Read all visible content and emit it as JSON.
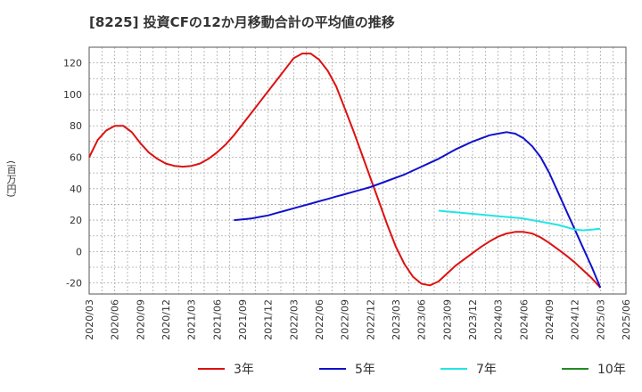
{
  "chart_data": {
    "type": "line",
    "title": "[8225]  投資CFの12か月移動合計の平均値の推移",
    "ylabel": "(百万円)",
    "xlabel": "",
    "ylim": [
      -27,
      130
    ],
    "yticks": [
      -20,
      0,
      20,
      40,
      60,
      80,
      100,
      120
    ],
    "x_ticks": [
      "2020/03",
      "2020/06",
      "2020/09",
      "2020/12",
      "2021/03",
      "2021/06",
      "2021/09",
      "2021/12",
      "2022/03",
      "2022/06",
      "2022/09",
      "2022/12",
      "2023/03",
      "2023/06",
      "2023/09",
      "2023/12",
      "2024/03",
      "2024/06",
      "2024/09",
      "2024/12",
      "2025/03",
      "2025/06"
    ],
    "grid": true,
    "legend_position": "bottom",
    "series": [
      {
        "name": "3年",
        "color": "#dd1111",
        "x": [
          "2020/03",
          "2020/04",
          "2020/05",
          "2020/06",
          "2020/07",
          "2020/08",
          "2020/09",
          "2020/10",
          "2020/11",
          "2020/12",
          "2021/01",
          "2021/02",
          "2021/03",
          "2021/04",
          "2021/05",
          "2021/06",
          "2021/07",
          "2021/08",
          "2021/09",
          "2021/10",
          "2021/11",
          "2021/12",
          "2022/01",
          "2022/02",
          "2022/03",
          "2022/04",
          "2022/05",
          "2022/06",
          "2022/07",
          "2022/08",
          "2022/09",
          "2022/10",
          "2022/11",
          "2022/12",
          "2023/01",
          "2023/02",
          "2023/03",
          "2023/04",
          "2023/05",
          "2023/06",
          "2023/07",
          "2023/08",
          "2023/09",
          "2023/10",
          "2023/11",
          "2023/12",
          "2024/01",
          "2024/02",
          "2024/03",
          "2024/04",
          "2024/05",
          "2024/06",
          "2024/07",
          "2024/08",
          "2024/09",
          "2024/10",
          "2024/11",
          "2024/12",
          "2025/01",
          "2025/02",
          "2025/03"
        ],
        "values": [
          60,
          71,
          77,
          80,
          80,
          76,
          69,
          63,
          59,
          56,
          54.5,
          54,
          54.5,
          56,
          59,
          63,
          68,
          74,
          81,
          88,
          95,
          102,
          109,
          116,
          123,
          126,
          126,
          122,
          115,
          105,
          91,
          77,
          62,
          47,
          32,
          17,
          3,
          -8,
          -16,
          -20.5,
          -21.5,
          -19,
          -14,
          -9,
          -5,
          -1,
          3,
          6.5,
          9.5,
          11.5,
          12.5,
          12.5,
          11.5,
          9,
          5.5,
          1.5,
          -2.5,
          -7,
          -12,
          -17,
          -23
        ]
      },
      {
        "name": "5年",
        "color": "#1111cc",
        "x": [
          "2021/08",
          "2021/09",
          "2021/10",
          "2021/11",
          "2021/12",
          "2022/01",
          "2022/02",
          "2022/03",
          "2022/04",
          "2022/05",
          "2022/06",
          "2022/07",
          "2022/08",
          "2022/09",
          "2022/10",
          "2022/11",
          "2022/12",
          "2023/01",
          "2023/02",
          "2023/03",
          "2023/04",
          "2023/05",
          "2023/06",
          "2023/07",
          "2023/08",
          "2023/09",
          "2023/10",
          "2023/11",
          "2023/12",
          "2024/01",
          "2024/02",
          "2024/03",
          "2024/04",
          "2024/05",
          "2024/06",
          "2024/07",
          "2024/08",
          "2024/09",
          "2024/10",
          "2024/11",
          "2024/12",
          "2025/01",
          "2025/02",
          "2025/03"
        ],
        "values": [
          20,
          20.5,
          21,
          22,
          23,
          24.5,
          26,
          27.5,
          29,
          30.5,
          32,
          33.5,
          35,
          36.5,
          38,
          39.5,
          41,
          43,
          45,
          47,
          49,
          51.5,
          54,
          56.5,
          59,
          62,
          65,
          67.5,
          70,
          72,
          74,
          75,
          76,
          75,
          72,
          67,
          60,
          50,
          38,
          26,
          14,
          2,
          -10,
          -23
        ]
      },
      {
        "name": "7年",
        "color": "#22e5e5",
        "x": [
          "2023/08",
          "2023/09",
          "2023/10",
          "2023/11",
          "2023/12",
          "2024/01",
          "2024/02",
          "2024/03",
          "2024/04",
          "2024/05",
          "2024/06",
          "2024/07",
          "2024/08",
          "2024/09",
          "2024/10",
          "2024/11",
          "2024/12",
          "2025/01",
          "2025/02",
          "2025/03"
        ],
        "values": [
          26,
          25.5,
          25,
          24.5,
          24,
          23.5,
          23,
          22.5,
          22,
          21.5,
          21,
          20,
          19,
          18,
          17,
          15.5,
          14,
          13.5,
          14,
          14.5
        ]
      },
      {
        "name": "10年",
        "color": "#228b22",
        "x": [],
        "values": []
      }
    ]
  }
}
